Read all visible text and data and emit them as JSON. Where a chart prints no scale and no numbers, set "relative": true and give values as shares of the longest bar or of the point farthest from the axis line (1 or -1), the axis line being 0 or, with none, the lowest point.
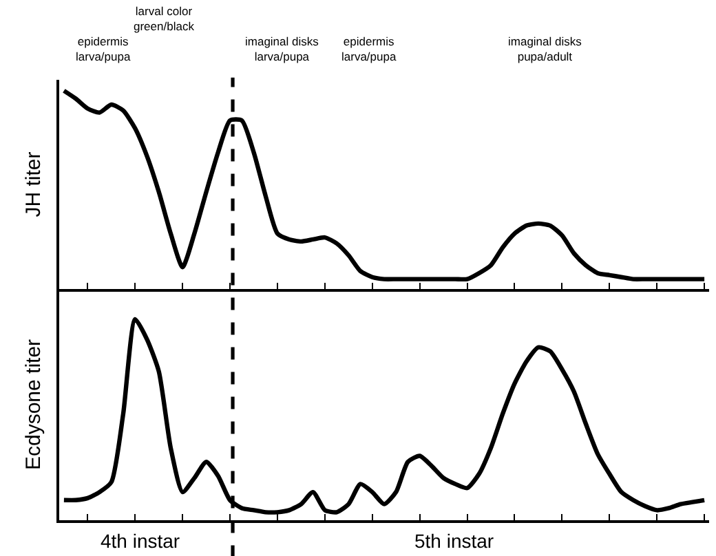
{
  "chart_data": [
    {
      "type": "line",
      "relative": true,
      "ylabel": "JH titer",
      "categories": [
        null,
        null,
        null,
        null,
        null,
        null,
        null,
        null,
        null,
        null,
        null,
        null,
        null,
        null,
        null,
        null,
        null,
        null,
        null,
        null,
        null,
        null,
        null,
        null,
        null,
        null,
        null,
        null,
        null,
        null,
        null,
        null,
        null,
        null,
        null,
        null,
        null,
        null,
        null,
        null,
        null,
        null,
        null,
        null,
        null,
        null,
        null,
        null,
        null,
        null,
        null,
        null,
        null,
        null,
        null
      ],
      "series": [
        {
          "color": "#000000",
          "values": [
            1.0,
            0.96,
            0.91,
            0.89,
            0.93,
            0.9,
            0.81,
            0.67,
            0.49,
            0.28,
            0.11,
            0.28,
            0.49,
            0.69,
            0.85,
            0.85,
            0.69,
            0.47,
            0.28,
            0.25,
            0.24,
            0.25,
            0.26,
            0.23,
            0.17,
            0.09,
            0.06,
            0.05,
            0.05,
            0.05,
            0.05,
            0.05,
            0.05,
            0.05,
            0.05,
            0.08,
            0.12,
            0.21,
            0.28,
            0.32,
            0.33,
            0.32,
            0.27,
            0.18,
            0.12,
            0.08,
            0.07,
            0.06,
            0.05,
            0.05,
            0.05,
            0.05,
            0.05,
            0.05,
            0.05
          ]
        }
      ],
      "annotations": [
        "epidermis\nlarva/pupa",
        "larval color\ngreen/black",
        "imaginal disks\nlarva/pupa",
        "epidermis\nlarva/pupa",
        "imaginal disks\npupa/adult"
      ]
    },
    {
      "type": "line",
      "relative": true,
      "ylabel": "Ecdysone titer",
      "categories": [
        null,
        null,
        null,
        null,
        null,
        null,
        null,
        null,
        null,
        null,
        null,
        null,
        null,
        null,
        null,
        null,
        null,
        null,
        null,
        null,
        null,
        null,
        null,
        null,
        null,
        null,
        null,
        null,
        null,
        null,
        null,
        null,
        null,
        null,
        null,
        null,
        null,
        null,
        null,
        null,
        null,
        null,
        null,
        null,
        null,
        null,
        null,
        null,
        null,
        null,
        null,
        null,
        null,
        null,
        null
      ],
      "series": [
        {
          "color": "#000000",
          "values": [
            0.1,
            0.1,
            0.11,
            0.14,
            0.19,
            0.53,
            1.0,
            0.9,
            0.74,
            0.36,
            0.14,
            0.21,
            0.29,
            0.22,
            0.1,
            0.06,
            0.05,
            0.04,
            0.04,
            0.05,
            0.08,
            0.14,
            0.05,
            0.04,
            0.08,
            0.18,
            0.14,
            0.08,
            0.14,
            0.29,
            0.32,
            0.27,
            0.21,
            0.18,
            0.16,
            0.23,
            0.36,
            0.53,
            0.68,
            0.79,
            0.86,
            0.84,
            0.75,
            0.64,
            0.48,
            0.33,
            0.23,
            0.14,
            0.1,
            0.07,
            0.05,
            0.06,
            0.08,
            0.09,
            0.1
          ]
        }
      ],
      "annotations": [
        "4th instar",
        "5th instar"
      ]
    }
  ]
}
